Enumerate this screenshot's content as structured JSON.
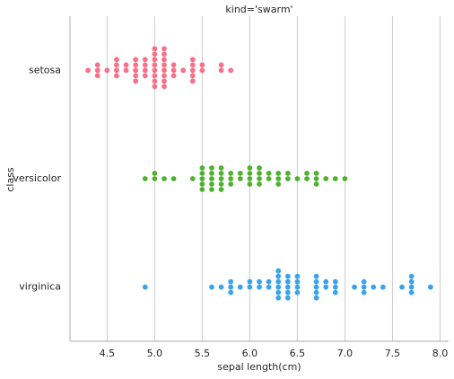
{
  "chart_data": {
    "type": "swarm",
    "title": "kind='swarm'",
    "xlabel": "sepal length(cm)",
    "ylabel": "class",
    "categories": [
      "setosa",
      "versicolor",
      "virginica"
    ],
    "colors": [
      "#f77189",
      "#50b131",
      "#3ba3ec"
    ],
    "values": [
      [
        5.1,
        4.9,
        4.7,
        4.6,
        5.0,
        5.4,
        4.6,
        5.0,
        4.4,
        4.9,
        5.4,
        4.8,
        4.8,
        4.3,
        5.8,
        5.7,
        5.4,
        5.1,
        5.7,
        5.1,
        5.4,
        5.1,
        4.6,
        5.1,
        4.8,
        5.0,
        5.0,
        5.2,
        5.2,
        4.7,
        4.8,
        5.4,
        5.2,
        5.5,
        4.9,
        5.0,
        5.5,
        4.9,
        4.4,
        5.1,
        5.0,
        4.5,
        4.4,
        5.0,
        5.1,
        4.8,
        5.1,
        4.6,
        5.3,
        5.0
      ],
      [
        7.0,
        6.4,
        6.9,
        5.5,
        6.5,
        5.7,
        6.3,
        4.9,
        6.6,
        5.2,
        5.0,
        5.9,
        6.0,
        6.1,
        5.6,
        6.7,
        5.6,
        5.8,
        6.2,
        5.6,
        5.9,
        6.1,
        6.3,
        6.1,
        6.4,
        6.6,
        6.8,
        6.7,
        6.0,
        5.7,
        5.5,
        5.5,
        5.8,
        6.0,
        5.4,
        6.0,
        6.7,
        6.3,
        5.6,
        5.5,
        5.5,
        6.1,
        5.8,
        5.0,
        5.6,
        5.7,
        5.7,
        6.2,
        5.1,
        5.7
      ],
      [
        6.3,
        5.8,
        7.1,
        6.3,
        6.5,
        7.6,
        4.9,
        7.3,
        6.7,
        7.2,
        6.5,
        6.4,
        6.8,
        5.7,
        5.8,
        6.4,
        6.5,
        7.7,
        7.7,
        6.0,
        6.9,
        5.6,
        7.7,
        6.3,
        6.7,
        7.2,
        6.2,
        6.1,
        6.4,
        7.2,
        7.4,
        7.9,
        6.4,
        6.3,
        6.1,
        7.7,
        6.3,
        6.4,
        6.0,
        6.9,
        6.7,
        6.9,
        5.8,
        6.8,
        6.7,
        6.7,
        6.3,
        6.5,
        6.2,
        5.9
      ]
    ],
    "xlim": [
      4.11,
      8.09
    ],
    "xticks": [
      {
        "value": 4.5,
        "label": "4.5"
      },
      {
        "value": 5.0,
        "label": "5.0"
      },
      {
        "value": 5.5,
        "label": "5.5"
      },
      {
        "value": 6.0,
        "label": "6.0"
      },
      {
        "value": 6.5,
        "label": "6.5"
      },
      {
        "value": 7.0,
        "label": "7.0"
      },
      {
        "value": 7.5,
        "label": "7.5"
      },
      {
        "value": 8.0,
        "label": "8.0"
      }
    ],
    "grid": true
  }
}
